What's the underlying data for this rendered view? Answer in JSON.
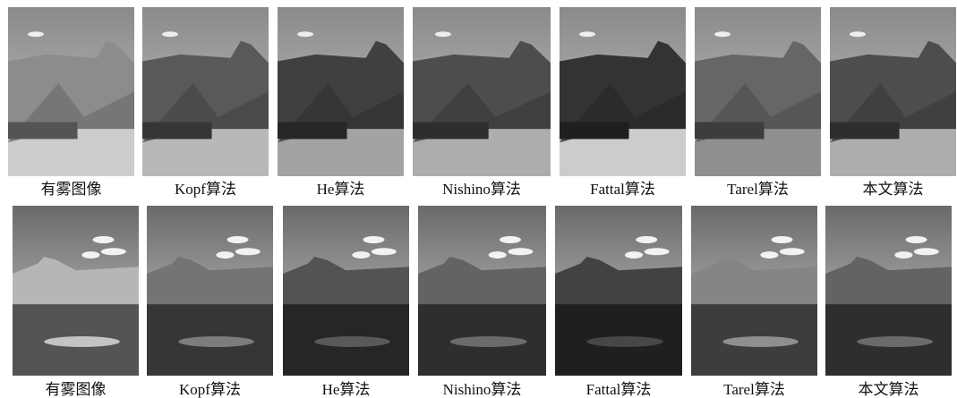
{
  "rows": [
    {
      "captions": [
        "有雾图像",
        "Kopf算法",
        "He算法",
        "Nishino算法",
        "Fattal算法",
        "Tarel算法",
        "本文算法"
      ]
    },
    {
      "captions": [
        "有雾图像",
        "Kopf算法",
        "He算法",
        "Nishino算法",
        "Fattal算法",
        "Tarel算法",
        "本文算法"
      ]
    }
  ]
}
